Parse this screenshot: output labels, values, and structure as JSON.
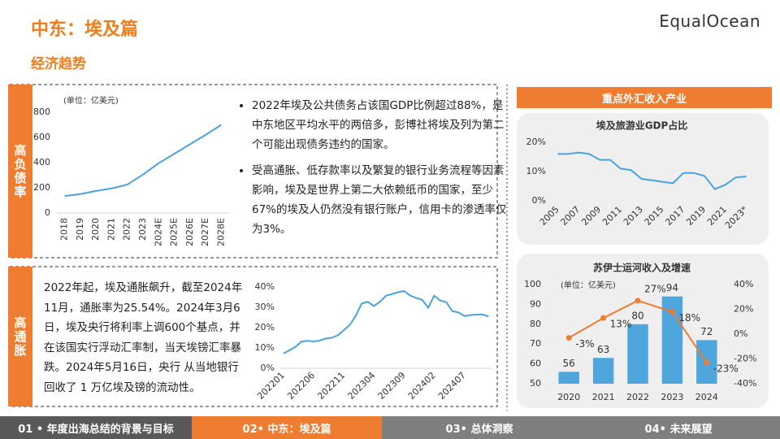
{
  "header": {
    "title": "中东：埃及篇",
    "subtitle": "经济趋势",
    "logo": "EqualOcean"
  },
  "sections": [
    {
      "label": "高负债率",
      "bullets": [
        "2022年埃及公共债务占该国GDP比例超过88%，是中东地区平均水平的两倍多，彭博社将埃及列为第二个可能出现债务违约的国家。",
        "受高通胀、低存款率以及繁复的银行业务流程等因素影响，埃及是世界上第二大依赖纸币的国家，至少67%的埃及人仍然没有银行账户，信用卡的渗透率仅为3%。"
      ]
    },
    {
      "label": "高通胀",
      "text": "2022年起，埃及通胀飙升，截至2024年11月，通胀率为25.54%。2024年3月6日，埃及央行将利率上调600个基点，并在该国实行浮动汇率制，当天埃镑汇率暴跌。2024年5月16日，央行 从当地银行回收了 1 万亿埃及镑的流动性。"
    }
  ],
  "right_panel": {
    "title": "重点外汇收入产业"
  },
  "footer": {
    "tabs": [
      "01 • 年度出海总结的背景与目标",
      "02• 中东：埃及篇",
      "03• 总体洞察",
      "04• 未来展望"
    ],
    "active": 1
  },
  "chart_data": [
    {
      "type": "line",
      "unit": "(单位：亿美元)",
      "color": "#4aa3df",
      "categories": [
        "2018",
        "2019",
        "2020",
        "2021",
        "2022",
        "2023",
        "2024E",
        "2025E",
        "2026E",
        "2027E",
        "2028E"
      ],
      "values": [
        135,
        150,
        175,
        195,
        225,
        305,
        395,
        470,
        545,
        620,
        700
      ],
      "ylim": [
        0,
        800
      ],
      "yticks": [
        0,
        200,
        400,
        600,
        800
      ]
    },
    {
      "type": "line",
      "color": "#4aa3df",
      "categories": [
        "202201",
        null,
        null,
        null,
        null,
        "202206",
        null,
        null,
        null,
        null,
        "202211",
        null,
        null,
        null,
        null,
        "202304",
        null,
        null,
        null,
        null,
        "202309",
        null,
        null,
        null,
        null,
        "202402",
        null,
        null,
        null,
        null,
        "202407",
        null,
        null,
        null,
        null
      ],
      "values": [
        7.3,
        8.8,
        10.5,
        13.1,
        13.5,
        13.2,
        13.6,
        14.6,
        15.0,
        16.2,
        18.7,
        21.3,
        25.8,
        31.9,
        32.7,
        30.6,
        32.7,
        35.7,
        36.5,
        37.4,
        38.0,
        35.8,
        34.6,
        33.7,
        29.8,
        35.7,
        33.3,
        32.5,
        28.1,
        27.5,
        25.7,
        26.2,
        26.4,
        26.5,
        25.5
      ],
      "ylim": [
        0,
        40
      ],
      "yticks": [
        {
          "value": 0,
          "label": "0%"
        },
        {
          "value": 10,
          "label": "10%"
        },
        {
          "value": 20,
          "label": "20%"
        },
        {
          "value": 30,
          "label": "30%"
        },
        {
          "value": 40,
          "label": "40%"
        }
      ]
    },
    {
      "type": "line",
      "title": "埃及旅游业GDP占比",
      "color": "#4aa3df",
      "categories": [
        "2005",
        null,
        "2007",
        null,
        "2009",
        null,
        "2011",
        null,
        "2013",
        null,
        "2015",
        null,
        "2017",
        null,
        "2019",
        null,
        "2021",
        null,
        "2023*"
      ],
      "values": [
        16.0,
        16.0,
        16.5,
        16.0,
        14.0,
        14.0,
        11.0,
        10.5,
        7.5,
        7.0,
        6.5,
        6.0,
        9.5,
        9.5,
        8.5,
        4.0,
        5.5,
        8.0,
        8.3
      ],
      "ylim": [
        0,
        20
      ],
      "yticks": [
        {
          "value": 0,
          "label": "0%"
        },
        {
          "value": 10,
          "label": "10%"
        },
        {
          "value": 20,
          "label": "20%"
        }
      ]
    },
    {
      "type": "combo",
      "title": "苏伊士运河收入及增速",
      "unit": "(单位：亿美元)",
      "categories": [
        "2020",
        "2021",
        "2022",
        "2023",
        "2024"
      ],
      "series": [
        {
          "type": "bar",
          "color": "#4ea6dc",
          "values": [
            56,
            63,
            80,
            94,
            72
          ]
        },
        {
          "type": "line",
          "axis": "y2",
          "color": "#ed7d31",
          "values": [
            -3,
            13,
            27,
            18,
            -23
          ],
          "value_labels": [
            "-3%",
            "13%",
            "27%",
            "18%",
            "-23%"
          ]
        }
      ],
      "ylim": [
        50,
        100
      ],
      "yticks": [
        50,
        60,
        70,
        80,
        90,
        100
      ],
      "y2lim": [
        -40,
        40
      ],
      "y2ticks": [
        {
          "value": -40,
          "label": "-40%"
        },
        {
          "value": -20,
          "label": "-20%"
        },
        {
          "value": 0,
          "label": "0%"
        },
        {
          "value": 20,
          "label": "20%"
        },
        {
          "value": 40,
          "label": "40%"
        }
      ]
    }
  ]
}
